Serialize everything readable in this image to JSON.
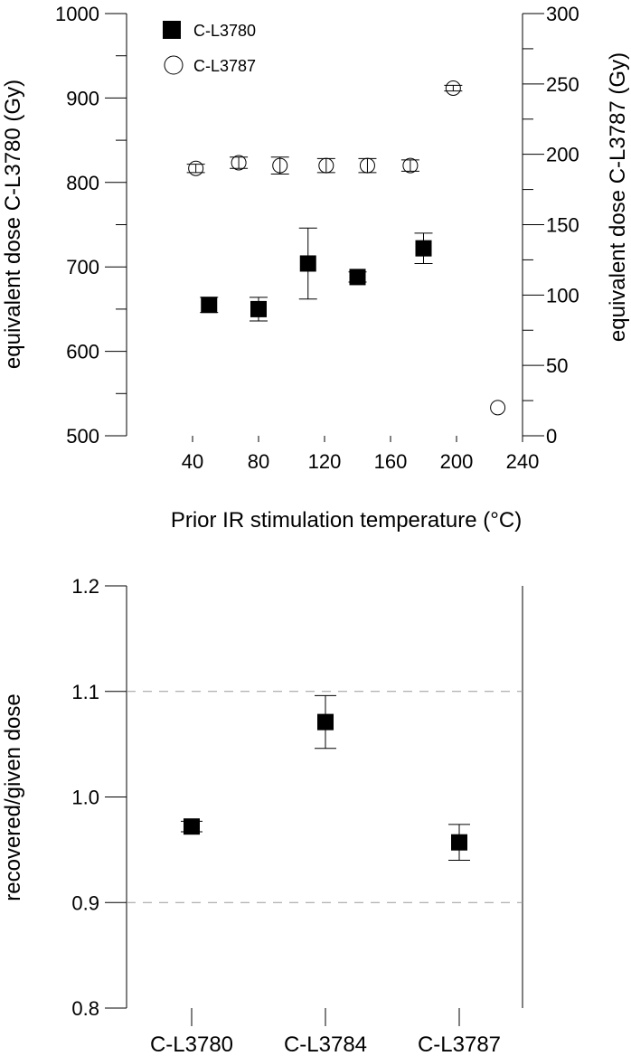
{
  "chart_data": [
    {
      "type": "scatter",
      "xlabel": "Prior IR stimulation temperature (°C)",
      "ylabel_left": "equivalent dose C-L3780 (Gy)",
      "ylabel_right": "equivalent dose C-L3787 (Gy)",
      "xlim": [
        0,
        240
      ],
      "ylim_left": [
        500,
        1000
      ],
      "ylim_right": [
        0,
        300
      ],
      "x_ticks": [
        40,
        80,
        120,
        160,
        200,
        240
      ],
      "y_ticks_left": [
        500,
        600,
        700,
        800,
        900,
        1000
      ],
      "y_ticks_right": [
        0,
        50,
        100,
        150,
        200,
        250,
        300
      ],
      "legend": {
        "position": "top-left",
        "entries": [
          "C-L3780",
          "C-L3787"
        ]
      },
      "series": [
        {
          "name": "C-L3780",
          "marker": "filled-square",
          "axis": "left",
          "points": [
            {
              "x": 50,
              "y": 655,
              "err": 9
            },
            {
              "x": 80,
              "y": 650,
              "err": 14
            },
            {
              "x": 110,
              "y": 704,
              "err": 42
            },
            {
              "x": 140,
              "y": 688,
              "err": 6
            },
            {
              "x": 180,
              "y": 722,
              "err": 18
            }
          ]
        },
        {
          "name": "C-L3787",
          "marker": "open-circle",
          "axis": "right",
          "points": [
            {
              "x": 42,
              "y": 190,
              "err": 3
            },
            {
              "x": 68,
              "y": 194,
              "err": 4
            },
            {
              "x": 93,
              "y": 192,
              "err": 6
            },
            {
              "x": 121,
              "y": 192,
              "err": 5
            },
            {
              "x": 146,
              "y": 192,
              "err": 5
            },
            {
              "x": 172,
              "y": 192,
              "err": 4
            },
            {
              "x": 198,
              "y": 247,
              "err": 2
            },
            {
              "x": 225,
              "y": 20,
              "err": 0
            }
          ]
        }
      ]
    },
    {
      "type": "scatter",
      "ylabel": "recovered/given dose",
      "categories": [
        "C-L3780",
        "C-L3784",
        "C-L3787"
      ],
      "ylim": [
        0.8,
        1.2
      ],
      "y_ticks": [
        "0.8",
        "0.9",
        "1.0",
        "1.1",
        "1.2"
      ],
      "reference_lines": [
        0.9,
        1.1
      ],
      "series": [
        {
          "marker": "filled-square",
          "values": [
            0.972,
            1.071,
            0.957
          ],
          "errors": [
            0.005,
            0.025,
            0.017
          ]
        }
      ]
    }
  ]
}
